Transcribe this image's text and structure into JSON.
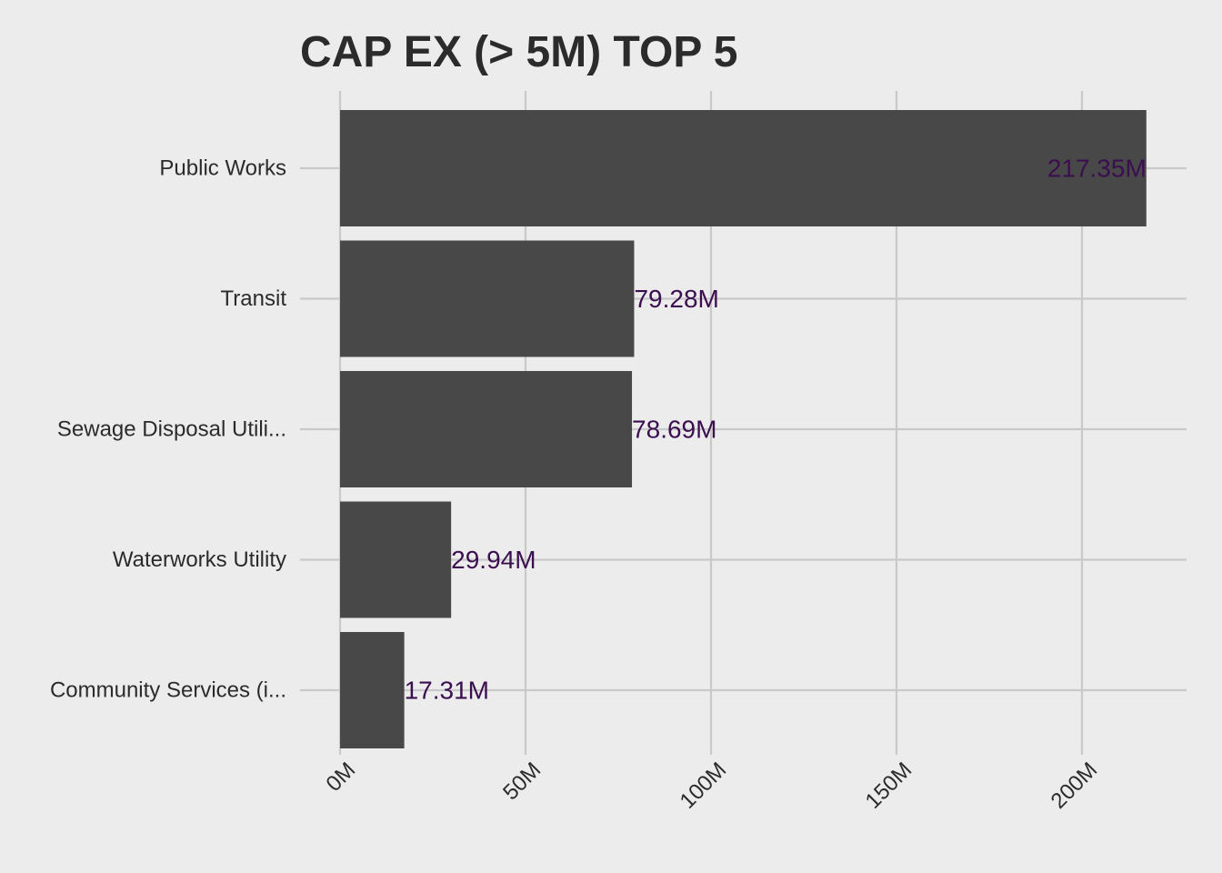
{
  "chart_data": {
    "type": "bar",
    "orientation": "horizontal",
    "title": "CAP EX (> 5M) TOP 5",
    "xlabel": "",
    "ylabel": "",
    "categories": [
      "Public Works",
      "Transit",
      "Sewage Disposal Utili...",
      "Waterworks Utility",
      "Community Services (i..."
    ],
    "values": [
      217.35,
      79.28,
      78.69,
      29.94,
      17.31
    ],
    "value_labels": [
      "217.35M",
      "79.28M",
      "78.69M",
      "29.94M",
      "17.31M"
    ],
    "xlim": [
      0,
      225
    ],
    "x_ticks": [
      0,
      50,
      100,
      150,
      200
    ],
    "x_tick_labels": [
      "0M",
      "50M",
      "100M",
      "150M",
      "200M"
    ],
    "grid": true,
    "legend": "none",
    "colors": {
      "bar": "#484848",
      "value_label": "#3b0f4f",
      "grid": "#c9c9c9",
      "background": "#ececec",
      "text": "#2b2b2b"
    }
  }
}
